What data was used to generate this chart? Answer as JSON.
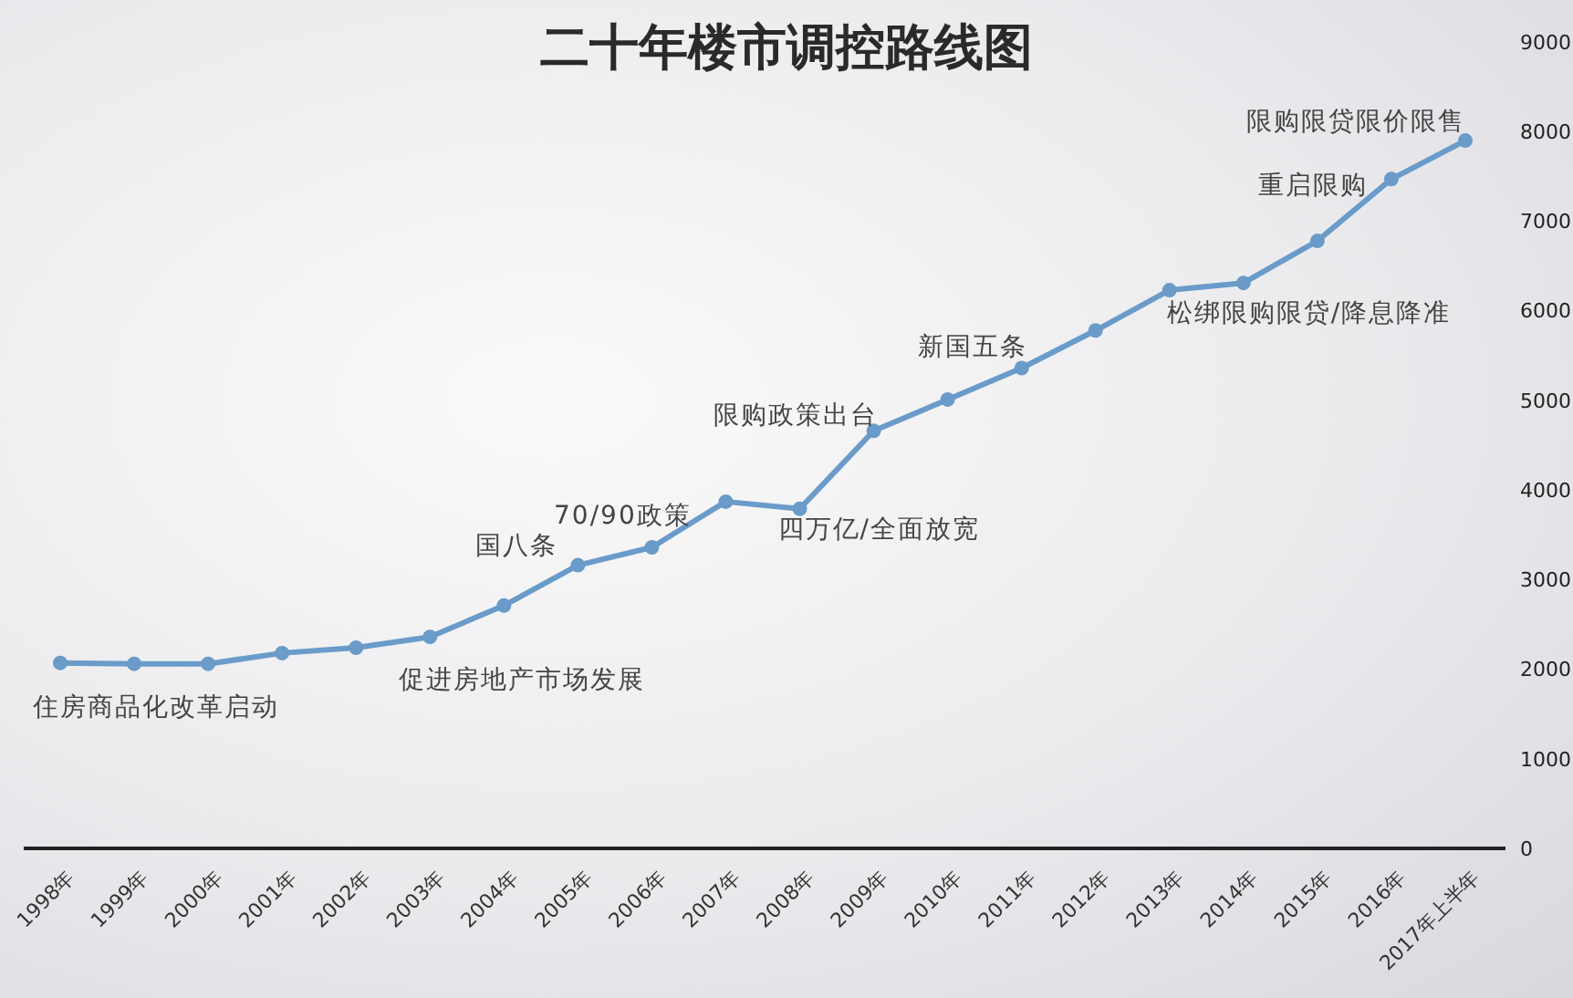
{
  "chart_data": {
    "type": "line",
    "title": "二十年楼市调控路线图",
    "categories": [
      "1998年",
      "1999年",
      "2000年",
      "2001年",
      "2002年",
      "2003年",
      "2004年",
      "2005年",
      "2006年",
      "2007年",
      "2008年",
      "2009年",
      "2010年",
      "2011年",
      "2012年",
      "2013年",
      "2014年",
      "2015年",
      "2016年",
      "2017年上半年"
    ],
    "series": [
      {
        "color": "#6a9bc9",
        "values": [
          2070,
          2060,
          2060,
          2180,
          2240,
          2360,
          2710,
          3160,
          3360,
          3870,
          3790,
          4660,
          5010,
          5360,
          5780,
          6230,
          6310,
          6780,
          7470,
          7900
        ]
      }
    ],
    "ylim": [
      0,
      9000
    ],
    "yticks": [
      0,
      1000,
      2000,
      3000,
      4000,
      5000,
      6000,
      7000,
      8000,
      9000
    ],
    "grid": false,
    "legend": false,
    "marker": "circle",
    "line_style": "solid",
    "annotations": [
      {
        "text": "住房商品化改革启动",
        "x": "1998年",
        "y": 2070
      },
      {
        "text": "促进房地产市场发展",
        "x": "2003年",
        "y": 2360
      },
      {
        "text": "国八条",
        "x": "2005年",
        "y": 3160
      },
      {
        "text": "70/90政策",
        "x": "2006年",
        "y": 3360
      },
      {
        "text": "四万亿/全面放宽",
        "x": "2008年",
        "y": 3790
      },
      {
        "text": "限购政策出台",
        "x": "2009年",
        "y": 4660
      },
      {
        "text": "新国五条",
        "x": "2011年",
        "y": 5360
      },
      {
        "text": "松绑限购限贷/降息降准",
        "x": "2014年",
        "y": 6310
      },
      {
        "text": "重启限购",
        "x": "2016年",
        "y": 7470
      },
      {
        "text": "限购限贷限价限售",
        "x": "2017年上半年",
        "y": 7900
      }
    ]
  }
}
